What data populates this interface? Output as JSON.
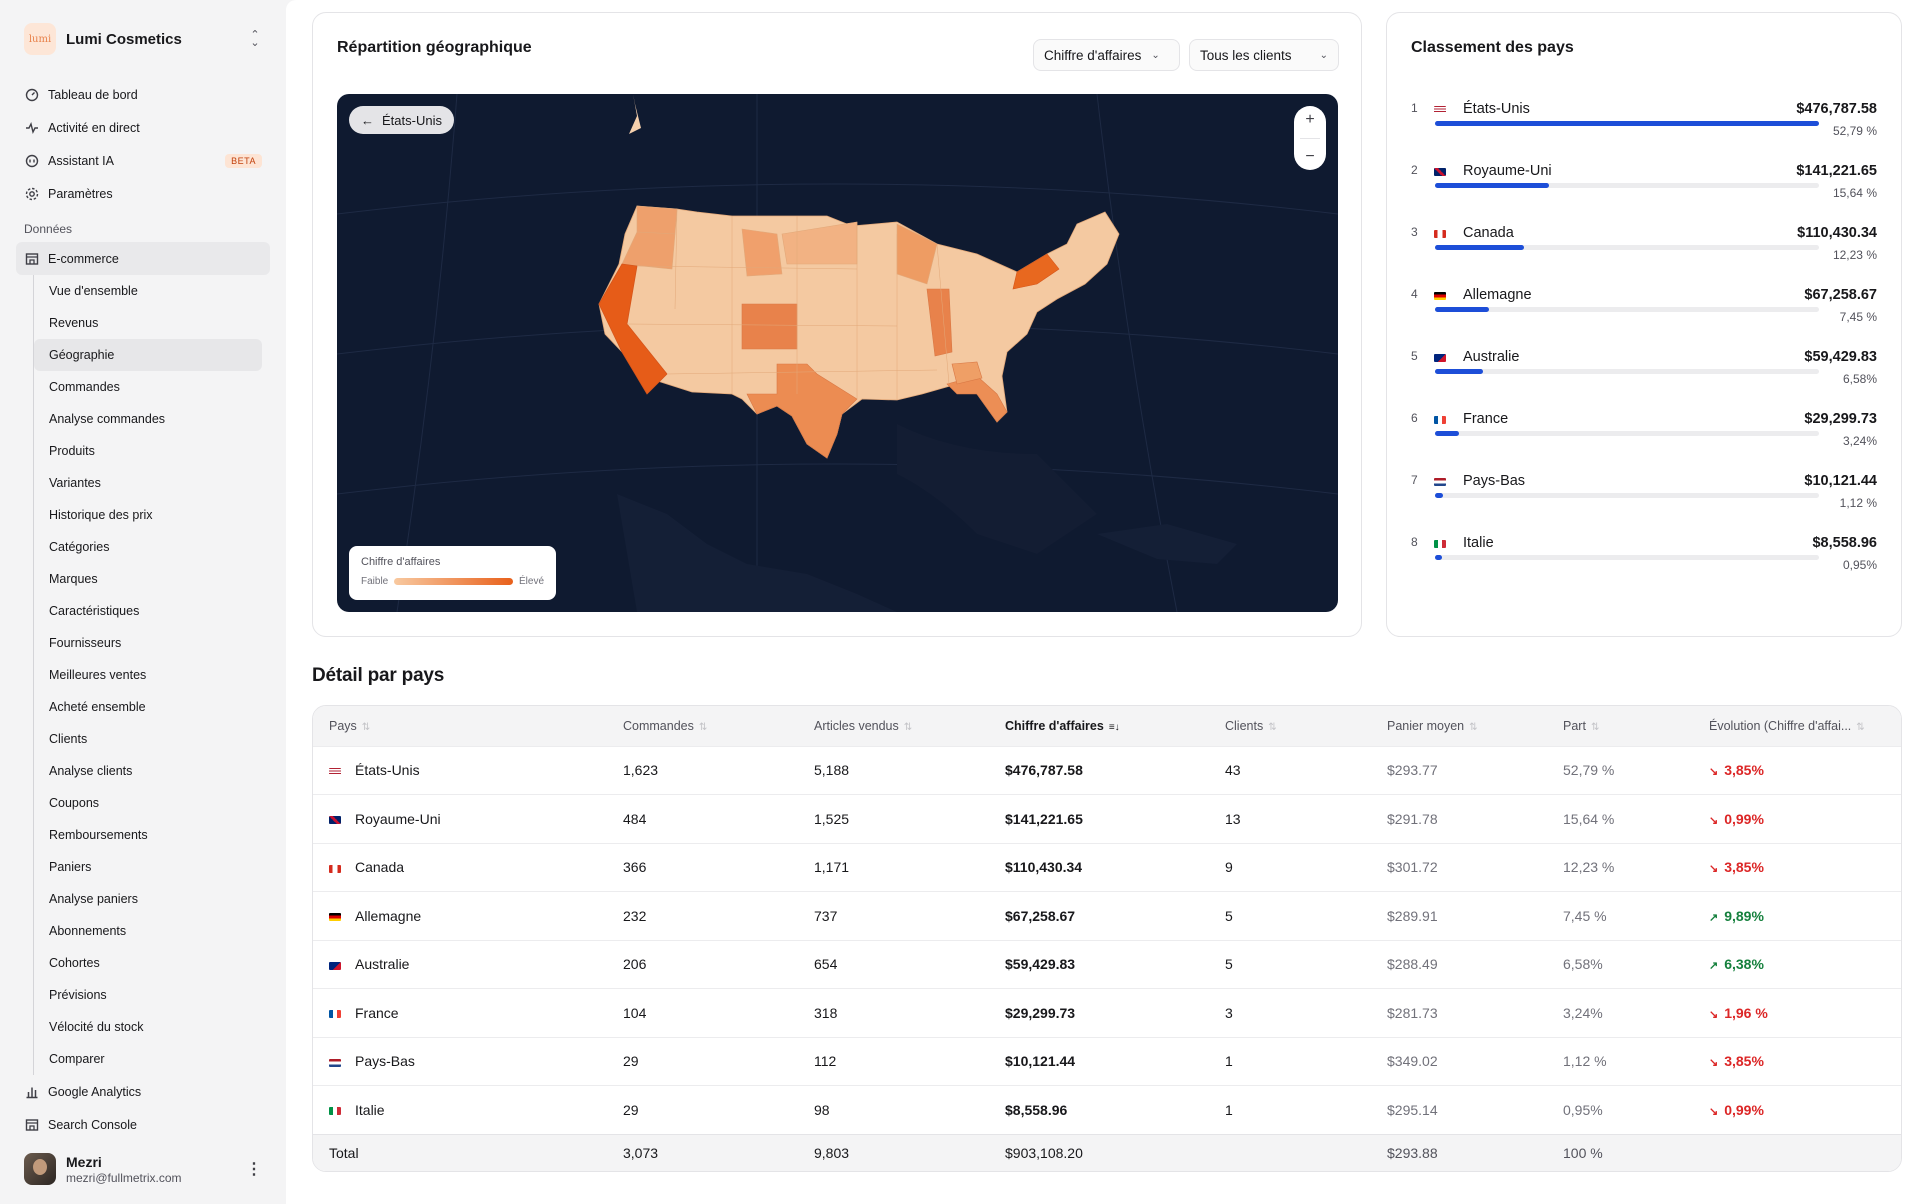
{
  "brand": {
    "logo_text": "lumi",
    "name": "Lumi Cosmetics"
  },
  "nav": {
    "top": [
      {
        "label": "Tableau de bord",
        "icon": "dashboard-icon"
      },
      {
        "label": "Activité en direct",
        "icon": "activity-icon"
      },
      {
        "label": "Assistant IA",
        "icon": "ai-icon",
        "badge": "BETA"
      },
      {
        "label": "Paramètres",
        "icon": "settings-icon"
      }
    ],
    "section_label": "Données",
    "ecommerce_label": "E-commerce",
    "sub_items": [
      "Vue d'ensemble",
      "Revenus",
      "Géographie",
      "Commandes",
      "Analyse commandes",
      "Produits",
      "Variantes",
      "Historique des prix",
      "Catégories",
      "Marques",
      "Caractéristiques",
      "Fournisseurs",
      "Meilleures ventes",
      "Acheté ensemble",
      "Clients",
      "Analyse clients",
      "Coupons",
      "Remboursements",
      "Paniers",
      "Analyse paniers",
      "Abonnements",
      "Cohortes",
      "Prévisions",
      "Vélocité du stock",
      "Comparer"
    ],
    "active_sub": "Géographie",
    "bottom": [
      {
        "label": "Google Analytics",
        "icon": "bar-chart-icon"
      },
      {
        "label": "Search Console",
        "icon": "globe-icon"
      }
    ]
  },
  "user": {
    "name": "Mezri",
    "email": "mezri@fullmetrix.com"
  },
  "geo": {
    "title": "Répartition géographique",
    "metric_select": "Chiffre d'affaires",
    "client_select": "Tous les clients",
    "back_label": "États-Unis",
    "legend_title": "Chiffre d'affaires",
    "legend_low": "Faible",
    "legend_high": "Élevé"
  },
  "ranking": {
    "title": "Classement des pays",
    "items": [
      {
        "rank": "1",
        "name": "États-Unis",
        "value": "$476,787.58",
        "pct": "52,79 %",
        "share": 0.5279
      },
      {
        "rank": "2",
        "name": "Royaume-Uni",
        "value": "$141,221.65",
        "pct": "15,64 %",
        "share": 0.1564
      },
      {
        "rank": "3",
        "name": "Canada",
        "value": "$110,430.34",
        "pct": "12,23 %",
        "share": 0.1223
      },
      {
        "rank": "4",
        "name": "Allemagne",
        "value": "$67,258.67",
        "pct": "7,45 %",
        "share": 0.0745
      },
      {
        "rank": "5",
        "name": "Australie",
        "value": "$59,429.83",
        "pct": "6,58%",
        "share": 0.0658
      },
      {
        "rank": "6",
        "name": "France",
        "value": "$29,299.73",
        "pct": "3,24%",
        "share": 0.0324
      },
      {
        "rank": "7",
        "name": "Pays-Bas",
        "value": "$10,121.44",
        "pct": "1,12 %",
        "share": 0.0112
      },
      {
        "rank": "8",
        "name": "Italie",
        "value": "$8,558.96",
        "pct": "0,95%",
        "share": 0.0095
      }
    ]
  },
  "detail": {
    "title": "Détail par pays",
    "columns": [
      "Pays",
      "Commandes",
      "Articles vendus",
      "Chiffre d'affaires",
      "Clients",
      "Panier moyen",
      "Part",
      "Évolution (Chiffre d'affai..."
    ],
    "rows": [
      {
        "country": "États-Unis",
        "orders": "1,623",
        "items": "5,188",
        "revenue": "$476,787.58",
        "clients": "43",
        "basket": "$293.77",
        "share": "52,79 %",
        "evo": "3,85%",
        "dir": "down"
      },
      {
        "country": "Royaume-Uni",
        "orders": "484",
        "items": "1,525",
        "revenue": "$141,221.65",
        "clients": "13",
        "basket": "$291.78",
        "share": "15,64 %",
        "evo": "0,99%",
        "dir": "down"
      },
      {
        "country": "Canada",
        "orders": "366",
        "items": "1,171",
        "revenue": "$110,430.34",
        "clients": "9",
        "basket": "$301.72",
        "share": "12,23 %",
        "evo": "3,85%",
        "dir": "down"
      },
      {
        "country": "Allemagne",
        "orders": "232",
        "items": "737",
        "revenue": "$67,258.67",
        "clients": "5",
        "basket": "$289.91",
        "share": "7,45 %",
        "evo": "9,89%",
        "dir": "up"
      },
      {
        "country": "Australie",
        "orders": "206",
        "items": "654",
        "revenue": "$59,429.83",
        "clients": "5",
        "basket": "$288.49",
        "share": "6,58%",
        "evo": "6,38%",
        "dir": "up"
      },
      {
        "country": "France",
        "orders": "104",
        "items": "318",
        "revenue": "$29,299.73",
        "clients": "3",
        "basket": "$281.73",
        "share": "3,24%",
        "evo": "1,96 %",
        "dir": "down"
      },
      {
        "country": "Pays-Bas",
        "orders": "29",
        "items": "112",
        "revenue": "$10,121.44",
        "clients": "1",
        "basket": "$349.02",
        "share": "1,12 %",
        "evo": "3,85%",
        "dir": "down"
      },
      {
        "country": "Italie",
        "orders": "29",
        "items": "98",
        "revenue": "$8,558.96",
        "clients": "1",
        "basket": "$295.14",
        "share": "0,95%",
        "evo": "0,99%",
        "dir": "down"
      }
    ],
    "total": {
      "label": "Total",
      "orders": "3,073",
      "items": "9,803",
      "revenue": "$903,108.20",
      "basket": "$293.88",
      "share": "100 %"
    }
  },
  "colors": {
    "accent_blue": "#1d4ed8",
    "map_bg": "#0f1a30",
    "heat_low": "#f8c9a0",
    "heat_high": "#e8601b",
    "down": "#dc2626",
    "up": "#15803d"
  }
}
